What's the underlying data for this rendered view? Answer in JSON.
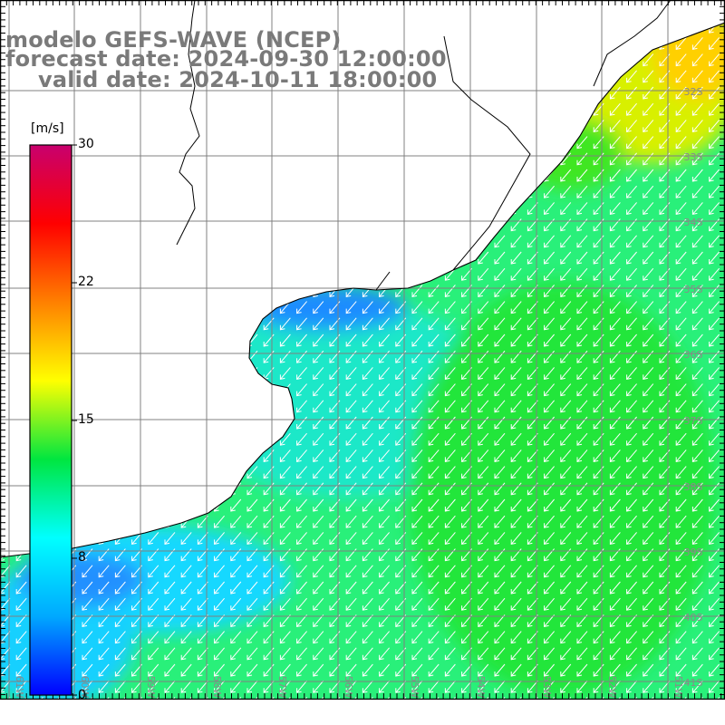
{
  "header": {
    "line1": "modelo GEFS-WAVE (NCEP)",
    "line2": "forecast date: 2024-09-30 12:00:00",
    "line3": "valid date: 2024-10-11 18:00:00"
  },
  "colorbar": {
    "unit": "[m/s]",
    "ticks": [
      "30",
      "22",
      "15",
      "8",
      "0"
    ],
    "range": [
      0,
      30
    ],
    "stops": [
      "#0000ff",
      "#00a8ff",
      "#00ffff",
      "#00e640",
      "#ffff00",
      "#ff8000",
      "#ff0000",
      "#c8006e"
    ]
  },
  "map": {
    "lat_labels": [
      "32S",
      "33S",
      "34S",
      "35S",
      "36S",
      "37S",
      "38S",
      "39S",
      "40S",
      "41S"
    ],
    "lon_labels": [
      "61W",
      "60W",
      "59W",
      "58W",
      "57W",
      "56W",
      "55W",
      "54W",
      "53W",
      "52W",
      "51W"
    ],
    "land_color": "#ffffff",
    "grid_color": "#7f7f7f",
    "arrow_color": "#ffffff",
    "shown_quantity": "wind speed and direction over the ocean"
  }
}
